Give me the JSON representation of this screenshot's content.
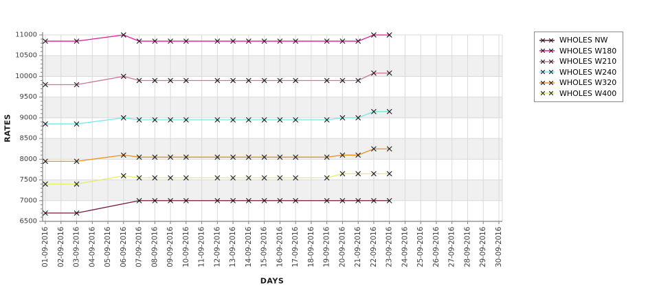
{
  "page": {
    "background": "#ffffff"
  },
  "chart_data": {
    "type": "line",
    "title": "",
    "xlabel": "DAYS",
    "ylabel": "RATES",
    "ylim": [
      6500,
      11000
    ],
    "y_tick_step": 500,
    "y_minor_step": 100,
    "grid": true,
    "legend_position": "top-right",
    "band_color": "#f0f0f0",
    "grid_color": "#d9d9d9",
    "axis_color": "#808080",
    "tick_label_color": "#3c3c3c",
    "marker": "x",
    "marker_color": "#141414",
    "x_categories": [
      "01-09-2016",
      "02-09-2016",
      "03-09-2016",
      "04-09-2016",
      "05-09-2016",
      "06-09-2016",
      "07-09-2016",
      "08-09-2016",
      "09-09-2016",
      "10-09-2016",
      "11-09-2016",
      "12-09-2016",
      "13-09-2016",
      "14-09-2016",
      "15-09-2016",
      "16-09-2016",
      "17-09-2016",
      "18-09-2016",
      "19-09-2016",
      "20-09-2016",
      "21-09-2016",
      "22-09-2016",
      "23-09-2016",
      "24-09-2016",
      "25-09-2016",
      "26-09-2016",
      "27-09-2016",
      "28-09-2016",
      "29-09-2016",
      "30-09-2016"
    ],
    "series": [
      {
        "name": "WHOLES NW",
        "color": "#6d1a3f",
        "days": [
          1,
          3,
          7,
          8,
          9,
          10,
          12,
          13,
          14,
          15,
          16,
          17,
          19,
          20,
          21,
          22,
          23
        ],
        "values": [
          6700,
          6700,
          7000,
          7000,
          7000,
          7000,
          7000,
          7000,
          7000,
          7000,
          7000,
          7000,
          7000,
          7000,
          7000,
          7000,
          7000
        ]
      },
      {
        "name": "WHOLES W180",
        "color": "#e0189a",
        "days": [
          1,
          3,
          6,
          7,
          8,
          9,
          10,
          12,
          13,
          14,
          15,
          16,
          17,
          19,
          20,
          21,
          22,
          23
        ],
        "values": [
          10850,
          10850,
          11000,
          10850,
          10850,
          10850,
          10850,
          10850,
          10850,
          10850,
          10850,
          10850,
          10850,
          10850,
          10850,
          10850,
          11000,
          11000
        ]
      },
      {
        "name": "WHOLES W210",
        "color": "#ce7499",
        "days": [
          1,
          3,
          6,
          7,
          8,
          9,
          10,
          12,
          13,
          14,
          15,
          16,
          17,
          19,
          20,
          21,
          22,
          23
        ],
        "values": [
          9800,
          9800,
          10000,
          9900,
          9900,
          9900,
          9900,
          9900,
          9900,
          9900,
          9900,
          9900,
          9900,
          9900,
          9900,
          9900,
          10080,
          10080
        ]
      },
      {
        "name": "WHOLES W240",
        "color": "#6fe8e8",
        "days": [
          1,
          3,
          6,
          7,
          8,
          9,
          10,
          12,
          13,
          14,
          15,
          16,
          17,
          19,
          20,
          21,
          22,
          23
        ],
        "values": [
          8850,
          8850,
          9000,
          8950,
          8950,
          8950,
          8950,
          8950,
          8950,
          8950,
          8950,
          8950,
          8950,
          8950,
          9000,
          9000,
          9150,
          9150
        ]
      },
      {
        "name": "WHOLES W320",
        "color": "#e8921c",
        "days": [
          1,
          3,
          6,
          7,
          8,
          9,
          10,
          12,
          13,
          14,
          15,
          16,
          17,
          19,
          20,
          21,
          22,
          23
        ],
        "values": [
          7950,
          7950,
          8100,
          8050,
          8050,
          8050,
          8050,
          8050,
          8050,
          8050,
          8050,
          8050,
          8050,
          8050,
          8100,
          8100,
          8250,
          8250
        ]
      },
      {
        "name": "WHOLES W400",
        "color": "#e6ee60",
        "days": [
          1,
          3,
          6,
          7,
          8,
          9,
          10,
          12,
          13,
          14,
          15,
          16,
          17,
          19,
          20,
          21,
          22,
          23
        ],
        "values": [
          7400,
          7400,
          7600,
          7550,
          7550,
          7550,
          7550,
          7550,
          7550,
          7550,
          7550,
          7550,
          7550,
          7550,
          7650,
          7650,
          7650,
          7650
        ]
      }
    ]
  }
}
